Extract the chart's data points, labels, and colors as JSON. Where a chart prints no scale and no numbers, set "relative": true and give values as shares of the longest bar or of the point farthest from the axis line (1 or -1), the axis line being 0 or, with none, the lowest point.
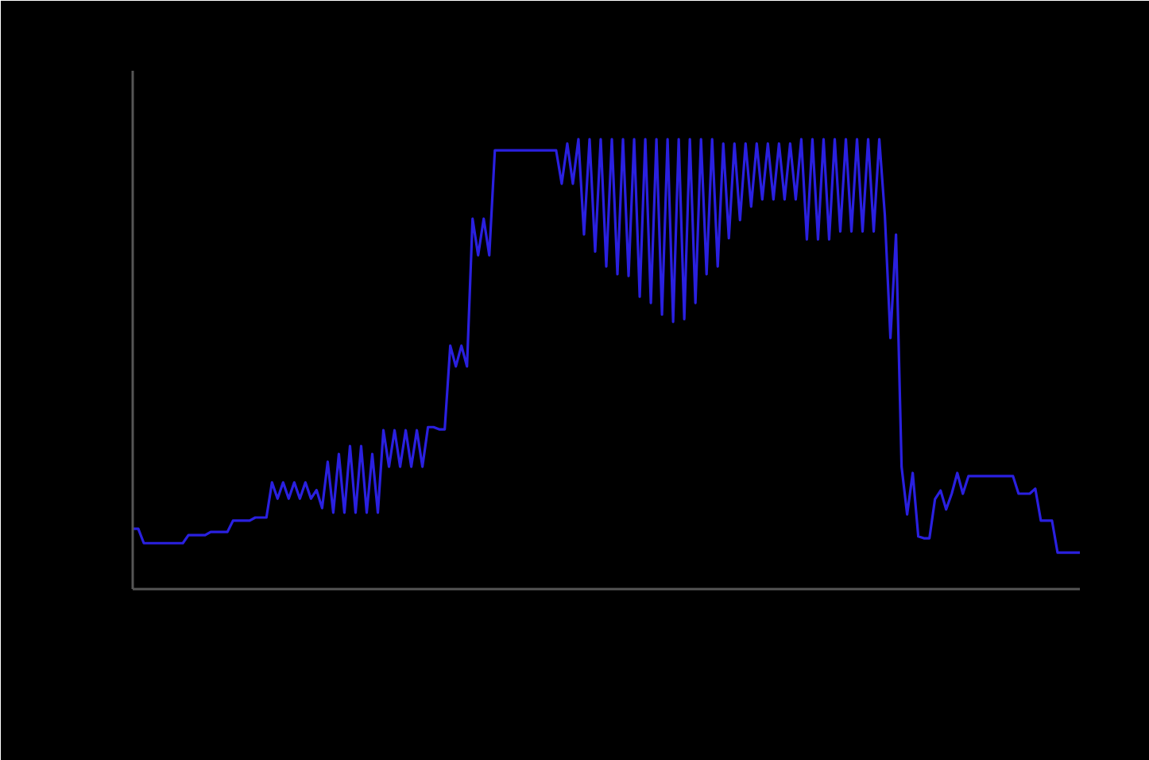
{
  "chart_data": {
    "type": "line",
    "relative": true,
    "categories": [
      null,
      null,
      null,
      null,
      null,
      null,
      null,
      null,
      null,
      null,
      null,
      null,
      null,
      null,
      null,
      null,
      null,
      null,
      null,
      null,
      null,
      null,
      null,
      null,
      null,
      null,
      null,
      null,
      null,
      null,
      null,
      null,
      null,
      null,
      null,
      null,
      null,
      null,
      null,
      null,
      null,
      null,
      null,
      null,
      null,
      null,
      null,
      null,
      null,
      null,
      null,
      null,
      null,
      null,
      null,
      null,
      null,
      null,
      null,
      null,
      null,
      null,
      null,
      null,
      null,
      null,
      null,
      null,
      null,
      null,
      null,
      null,
      null,
      null,
      null,
      null,
      null,
      null,
      null,
      null,
      null,
      null,
      null,
      null,
      null,
      null,
      null,
      null,
      null,
      null,
      null,
      null,
      null,
      null,
      null,
      null,
      null,
      null,
      null,
      null,
      null,
      null,
      null,
      null,
      null,
      null,
      null,
      null,
      null,
      null,
      null,
      null,
      null,
      null,
      null,
      null,
      null,
      null,
      null,
      null,
      null,
      null,
      null,
      null,
      null,
      null,
      null,
      null,
      null,
      null,
      null,
      null,
      null,
      null,
      null,
      null,
      null,
      null,
      null,
      null,
      null,
      null,
      null,
      null,
      null,
      null,
      null,
      null,
      null,
      null,
      null,
      null,
      null,
      null,
      null,
      null,
      null,
      null,
      null,
      null,
      null,
      null,
      null,
      null,
      null,
      null,
      null,
      null,
      null,
      null,
      null
    ],
    "series": [
      {
        "color": "#2a20e0",
        "values": [
          0.134,
          0.134,
          0.102,
          0.102,
          0.102,
          0.102,
          0.102,
          0.102,
          0.102,
          0.102,
          0.12,
          0.12,
          0.12,
          0.12,
          0.127,
          0.127,
          0.127,
          0.127,
          0.152,
          0.152,
          0.152,
          0.152,
          0.159,
          0.159,
          0.159,
          0.237,
          0.201,
          0.237,
          0.201,
          0.237,
          0.201,
          0.237,
          0.201,
          0.22,
          0.18,
          0.283,
          0.17,
          0.3,
          0.17,
          0.318,
          0.17,
          0.318,
          0.17,
          0.3,
          0.17,
          0.353,
          0.272,
          0.353,
          0.272,
          0.353,
          0.272,
          0.353,
          0.272,
          0.36,
          0.36,
          0.355,
          0.355,
          0.541,
          0.495,
          0.541,
          0.495,
          0.823,
          0.742,
          0.823,
          0.742,
          0.975,
          0.975,
          0.975,
          0.975,
          0.975,
          0.975,
          0.975,
          0.975,
          0.975,
          0.975,
          0.975,
          0.975,
          0.901,
          0.99,
          0.901,
          1.0,
          0.788,
          1.0,
          0.75,
          1.0,
          0.717,
          1.0,
          0.7,
          1.0,
          0.696,
          1.0,
          0.65,
          1.0,
          0.636,
          1.0,
          0.61,
          1.0,
          0.594,
          1.0,
          0.6,
          1.0,
          0.636,
          1.0,
          0.7,
          1.0,
          0.717,
          0.99,
          0.78,
          0.99,
          0.82,
          0.99,
          0.85,
          0.99,
          0.866,
          0.99,
          0.866,
          0.99,
          0.866,
          0.99,
          0.866,
          1.0,
          0.777,
          1.0,
          0.777,
          1.0,
          0.777,
          1.0,
          0.795,
          1.0,
          0.795,
          1.0,
          0.795,
          1.0,
          0.795,
          1.0,
          0.83,
          0.558,
          0.788,
          0.272,
          0.166,
          0.258,
          0.117,
          0.113,
          0.113,
          0.2,
          0.219,
          0.177,
          0.212,
          0.258,
          0.212,
          0.251,
          0.251,
          0.251,
          0.251,
          0.251,
          0.251,
          0.251,
          0.251,
          0.251,
          0.212,
          0.212,
          0.212,
          0.223,
          0.152,
          0.152,
          0.152,
          0.081,
          0.081,
          0.081,
          0.081,
          0.081
        ]
      }
    ]
  }
}
